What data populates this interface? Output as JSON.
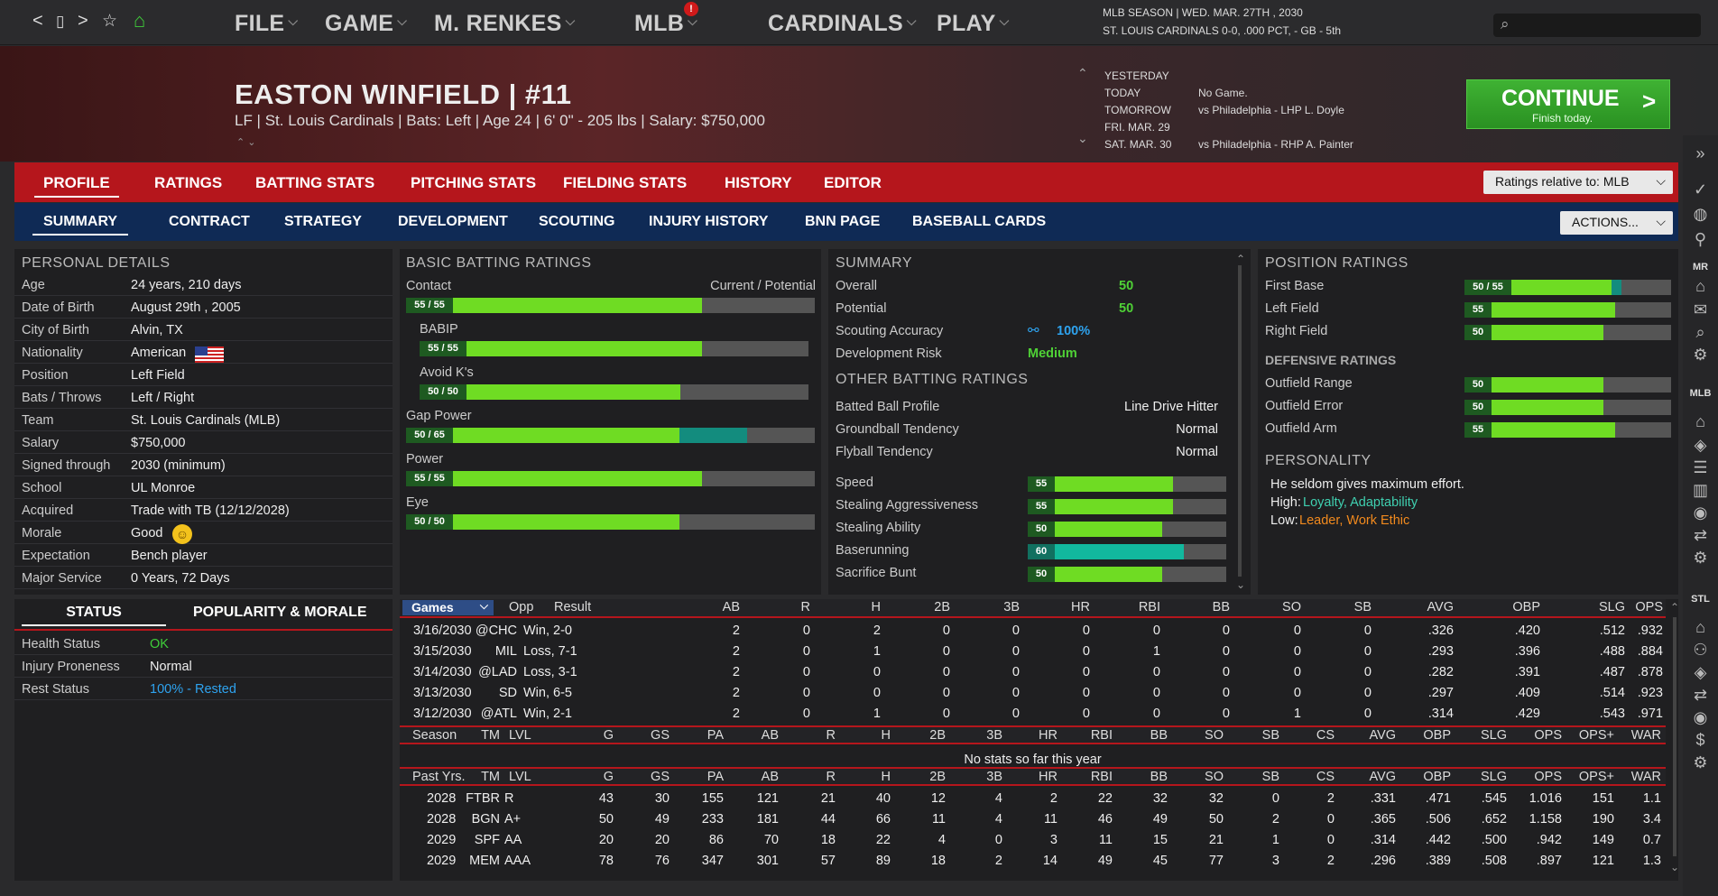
{
  "nav": {
    "back": "<",
    "home_box": "▯",
    "forward": ">",
    "star": "☆",
    "house": "⌂"
  },
  "menus": [
    "FILE",
    "GAME",
    "M. RENKES",
    "MLB",
    "CARDINALS",
    "PLAY"
  ],
  "mlb_badge": "!",
  "season": {
    "line1": "MLB SEASON  |  WED. MAR. 27TH , 2030",
    "line2": "ST. LOUIS CARDINALS  0-0, .000 PCT, - GB - 5th"
  },
  "player": {
    "name": "EASTON WINFIELD  |  #11",
    "info": "LF | St. Louis Cardinals  |  Bats: Left  |  Age 24  |  6' 0\" - 205 lbs  |  Salary: $750,000"
  },
  "schedule": [
    {
      "day": "YESTERDAY",
      "game": ""
    },
    {
      "day": "TODAY",
      "game": "No Game."
    },
    {
      "day": "TOMORROW",
      "game": "vs Philadelphia - LHP L. Doyle"
    },
    {
      "day": "FRI. MAR. 29",
      "game": ""
    },
    {
      "day": "SAT. MAR. 30",
      "game": "vs Philadelphia - RHP A. Painter"
    }
  ],
  "continue": {
    "title": "CONTINUE",
    "sub": "Finish today.",
    "arrow": ">"
  },
  "tabs1": [
    "PROFILE",
    "RATINGS",
    "BATTING STATS",
    "PITCHING STATS",
    "FIELDING STATS",
    "HISTORY",
    "EDITOR"
  ],
  "ratings_relative": "Ratings relative to: MLB",
  "tabs2": [
    "SUMMARY",
    "CONTRACT",
    "STRATEGY",
    "DEVELOPMENT",
    "SCOUTING",
    "INJURY HISTORY",
    "BNN PAGE",
    "BASEBALL CARDS"
  ],
  "actions": "ACTIONS...",
  "personal": {
    "title": "PERSONAL DETAILS",
    "rows": [
      [
        "Age",
        "24 years, 210 days"
      ],
      [
        "Date of Birth",
        "August 29th , 2005"
      ],
      [
        "City of Birth",
        "Alvin, TX"
      ],
      [
        "Nationality",
        "American"
      ],
      [
        "Position",
        "Left Field"
      ],
      [
        "Bats / Throws",
        "Left / Right"
      ],
      [
        "Team",
        "St. Louis Cardinals (MLB)"
      ],
      [
        "Salary",
        "$750,000"
      ],
      [
        "Signed through",
        "2030 (minimum)"
      ],
      [
        "School",
        "UL Monroe"
      ],
      [
        "Acquired",
        "Trade with TB (12/12/2028)"
      ],
      [
        "Morale",
        "Good"
      ],
      [
        "Expectation",
        "Bench player"
      ],
      [
        "Major Service",
        "0 Years, 72 Days"
      ]
    ]
  },
  "status_tabs": [
    "STATUS",
    "POPULARITY & MORALE"
  ],
  "status": [
    {
      "label": "Health Status",
      "value": "OK",
      "color": "#3fce3a"
    },
    {
      "label": "Injury Proneness",
      "value": "Normal",
      "color": "#eeeeee"
    },
    {
      "label": "Rest Status",
      "value": "100% - Rested",
      "color": "#2ea3ef"
    }
  ],
  "batting": {
    "title": "BASIC BATTING RATINGS",
    "cp": "Current / Potential",
    "items": [
      {
        "label": "Contact",
        "text": "55 / 55",
        "cur": 55,
        "pot": 55,
        "indent": false
      },
      {
        "label": "BABIP",
        "text": "55 / 55",
        "cur": 55,
        "pot": 55,
        "indent": true
      },
      {
        "label": "Avoid K's",
        "text": "50 / 50",
        "cur": 50,
        "pot": 50,
        "indent": true
      },
      {
        "label": "Gap Power",
        "text": "50 / 65",
        "cur": 50,
        "pot": 65,
        "indent": false
      },
      {
        "label": "Power",
        "text": "55 / 55",
        "cur": 55,
        "pot": 55,
        "indent": false
      },
      {
        "label": "Eye",
        "text": "50 / 50",
        "cur": 50,
        "pot": 50,
        "indent": false
      }
    ]
  },
  "summary": {
    "title": "SUMMARY",
    "overall": {
      "label": "Overall",
      "value": "50"
    },
    "potential": {
      "label": "Potential",
      "value": "50"
    },
    "accuracy": {
      "label": "Scouting Accuracy",
      "value": "100%"
    },
    "risk": {
      "label": "Development Risk",
      "value": "Medium"
    },
    "other_title": "OTHER BATTING RATINGS",
    "other": [
      [
        "Batted Ball Profile",
        "Line Drive Hitter"
      ],
      [
        "Groundball Tendency",
        "Normal"
      ],
      [
        "Flyball Tendency",
        "Normal"
      ]
    ],
    "speed": [
      {
        "label": "Speed",
        "value": 55
      },
      {
        "label": "Stealing Aggressiveness",
        "value": 55
      },
      {
        "label": "Stealing Ability",
        "value": 50
      },
      {
        "label": "Baserunning",
        "value": 60,
        "teal": true
      },
      {
        "label": "Sacrifice Bunt",
        "value": 50
      }
    ]
  },
  "position": {
    "title": "POSITION RATINGS",
    "items": [
      {
        "label": "First Base",
        "text": "50 / 55",
        "cur": 50,
        "pot": 55
      },
      {
        "label": "Left Field",
        "text": "55",
        "cur": 55
      },
      {
        "label": "Right Field",
        "text": "50",
        "cur": 50
      }
    ],
    "def_title": "DEFENSIVE RATINGS",
    "def": [
      {
        "label": "Outfield Range",
        "value": 50
      },
      {
        "label": "Outfield Error",
        "value": 50
      },
      {
        "label": "Outfield Arm",
        "value": 55
      }
    ],
    "pers_title": "PERSONALITY",
    "pers_line": "He seldom gives maximum effort.",
    "high_label": "High:",
    "high": "Loyalty, Adaptability",
    "low_label": "Low:",
    "low": "Leader, Work Ethic"
  },
  "games": {
    "select": "Games",
    "headers": [
      "Opp",
      "Result",
      "AB",
      "R",
      "H",
      "2B",
      "3B",
      "HR",
      "RBI",
      "BB",
      "SO",
      "SB",
      "AVG",
      "OBP",
      "SLG",
      "OPS"
    ],
    "rows": [
      [
        "3/16/2030",
        "@CHC",
        "Win, 2-0",
        "2",
        "0",
        "2",
        "0",
        "0",
        "0",
        "0",
        "0",
        "0",
        "0",
        ".326",
        ".420",
        ".512",
        ".932"
      ],
      [
        "3/15/2030",
        "MIL",
        "Loss, 7-1",
        "2",
        "0",
        "1",
        "0",
        "0",
        "0",
        "1",
        "0",
        "0",
        "0",
        ".293",
        ".396",
        ".488",
        ".884"
      ],
      [
        "3/14/2030",
        "@LAD",
        "Loss, 3-1",
        "2",
        "0",
        "0",
        "0",
        "0",
        "0",
        "0",
        "0",
        "0",
        "0",
        ".282",
        ".391",
        ".487",
        ".878"
      ],
      [
        "3/13/2030",
        "SD",
        "Win, 6-5",
        "2",
        "0",
        "0",
        "0",
        "0",
        "0",
        "0",
        "0",
        "0",
        "0",
        ".297",
        ".409",
        ".514",
        ".923"
      ],
      [
        "3/12/2030",
        "@ATL",
        "Win, 2-1",
        "2",
        "0",
        "1",
        "0",
        "0",
        "0",
        "0",
        "0",
        "1",
        "0",
        ".314",
        ".429",
        ".543",
        ".971"
      ]
    ]
  },
  "season_stats": {
    "headers": [
      "Season",
      "TM",
      "LVL",
      "G",
      "GS",
      "PA",
      "AB",
      "R",
      "H",
      "2B",
      "3B",
      "HR",
      "RBI",
      "BB",
      "SO",
      "SB",
      "CS",
      "AVG",
      "OBP",
      "SLG",
      "OPS",
      "OPS+",
      "WAR"
    ],
    "empty": "No stats so far this year"
  },
  "past": {
    "headers": [
      "Past Yrs.",
      "TM",
      "LVL",
      "G",
      "GS",
      "PA",
      "AB",
      "R",
      "H",
      "2B",
      "3B",
      "HR",
      "RBI",
      "BB",
      "SO",
      "SB",
      "CS",
      "AVG",
      "OBP",
      "SLG",
      "OPS",
      "OPS+",
      "WAR"
    ],
    "rows": [
      [
        "2028",
        "FTBR",
        "R",
        "43",
        "30",
        "155",
        "121",
        "21",
        "40",
        "12",
        "4",
        "2",
        "22",
        "32",
        "32",
        "0",
        "2",
        ".331",
        ".471",
        ".545",
        "1.016",
        "151",
        "1.1"
      ],
      [
        "2028",
        "BGN",
        "A+",
        "50",
        "49",
        "233",
        "181",
        "44",
        "66",
        "11",
        "4",
        "11",
        "46",
        "49",
        "50",
        "2",
        "0",
        ".365",
        ".506",
        ".652",
        "1.158",
        "190",
        "3.4"
      ],
      [
        "2029",
        "SPF",
        "AA",
        "20",
        "20",
        "86",
        "70",
        "18",
        "22",
        "4",
        "0",
        "3",
        "11",
        "15",
        "21",
        "1",
        "0",
        ".314",
        ".442",
        ".500",
        ".942",
        "149",
        "0.7"
      ],
      [
        "2029",
        "MEM",
        "AAA",
        "78",
        "76",
        "347",
        "301",
        "57",
        "89",
        "18",
        "2",
        "14",
        "49",
        "45",
        "77",
        "3",
        "2",
        ".296",
        ".389",
        ".508",
        ".897",
        "121",
        "1.3"
      ]
    ]
  },
  "rail": {
    "labels": [
      "MR",
      "MLB",
      "STL"
    ]
  },
  "colors": {
    "accent_red": "#b5161c",
    "navy": "#0f2a55",
    "green_bar": "#6fdc23",
    "continue_green": "#3fb233"
  }
}
